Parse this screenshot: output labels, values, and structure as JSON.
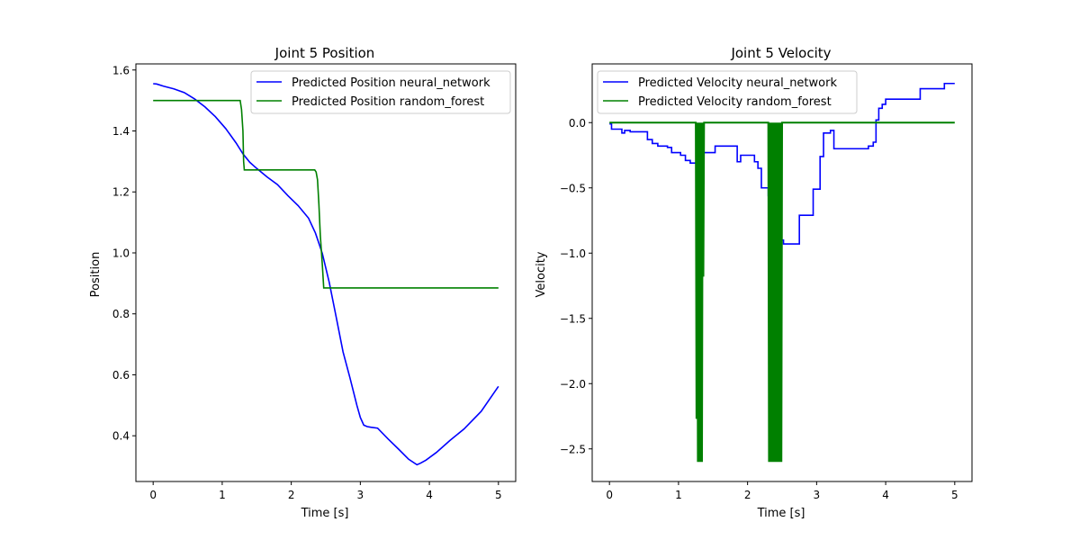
{
  "chart_data": [
    {
      "type": "line",
      "title": "Joint 5 Position",
      "xlabel": "Time [s]",
      "ylabel": "Position",
      "xlim": [
        -0.25,
        5.25
      ],
      "ylim": [
        0.25,
        1.62
      ],
      "xticks": [
        0,
        1,
        2,
        3,
        4,
        5
      ],
      "xtick_labels": [
        "0",
        "1",
        "2",
        "3",
        "4",
        "5"
      ],
      "yticks": [
        0.4,
        0.6,
        0.8,
        1.0,
        1.2,
        1.4,
        1.6
      ],
      "ytick_labels": [
        "0.4",
        "0.6",
        "0.8",
        "1.0",
        "1.2",
        "1.4",
        "1.6"
      ],
      "grid": false,
      "legend_position": "top-right",
      "series": [
        {
          "name": "Predicted Position neural_network",
          "color": "#0000ff",
          "x": [
            0,
            0.05,
            0.15,
            0.3,
            0.45,
            0.6,
            0.75,
            0.9,
            1.05,
            1.2,
            1.3,
            1.4,
            1.5,
            1.65,
            1.8,
            1.95,
            2.1,
            2.25,
            2.35,
            2.45,
            2.55,
            2.65,
            2.75,
            2.85,
            2.95,
            3.0,
            3.05,
            3.1,
            3.15,
            3.25,
            3.4,
            3.55,
            3.7,
            3.82,
            3.87,
            3.95,
            4.1,
            4.3,
            4.5,
            4.75,
            5.0
          ],
          "y": [
            1.555,
            1.554,
            1.547,
            1.538,
            1.526,
            1.505,
            1.479,
            1.447,
            1.408,
            1.361,
            1.325,
            1.297,
            1.277,
            1.249,
            1.224,
            1.188,
            1.155,
            1.114,
            1.065,
            0.998,
            0.903,
            0.79,
            0.675,
            0.59,
            0.5,
            0.46,
            0.435,
            0.43,
            0.428,
            0.425,
            0.39,
            0.357,
            0.323,
            0.305,
            0.31,
            0.32,
            0.345,
            0.385,
            0.422,
            0.48,
            0.562
          ]
        },
        {
          "name": "Predicted Position random_forest",
          "color": "#008000",
          "x": [
            0,
            0.3,
            0.6,
            0.9,
            1.2,
            1.26,
            1.28,
            1.3,
            1.31,
            1.32,
            1.4,
            1.6,
            1.8,
            2.0,
            2.2,
            2.34,
            2.36,
            2.38,
            2.4,
            2.42,
            2.45,
            2.47,
            2.5,
            3.0,
            3.5,
            4.0,
            4.5,
            5.0
          ],
          "y": [
            1.5,
            1.5,
            1.5,
            1.5,
            1.5,
            1.5,
            1.47,
            1.4,
            1.3,
            1.272,
            1.272,
            1.272,
            1.272,
            1.272,
            1.272,
            1.272,
            1.265,
            1.24,
            1.16,
            1.06,
            0.96,
            0.885,
            0.885,
            0.885,
            0.885,
            0.885,
            0.885,
            0.885
          ]
        }
      ]
    },
    {
      "type": "line",
      "title": "Joint 5 Velocity",
      "xlabel": "Time [s]",
      "ylabel": "Velocity",
      "xlim": [
        -0.25,
        5.25
      ],
      "ylim": [
        -2.75,
        0.45
      ],
      "xticks": [
        0,
        1,
        2,
        3,
        4,
        5
      ],
      "xtick_labels": [
        "0",
        "1",
        "2",
        "3",
        "4",
        "5"
      ],
      "yticks": [
        0.0,
        -0.5,
        -1.0,
        -1.5,
        -2.0,
        -2.5
      ],
      "ytick_labels": [
        "0.0",
        "−0.5",
        "−1.0",
        "−1.5",
        "−2.0",
        "−2.5"
      ],
      "grid": false,
      "legend_position": "top-left",
      "series": [
        {
          "name": "Predicted Velocity neural_network",
          "color": "#0000ff",
          "step": true,
          "x": [
            0,
            0.03,
            0.1,
            0.18,
            0.22,
            0.26,
            0.3,
            0.4,
            0.55,
            0.62,
            0.7,
            0.8,
            0.84,
            0.9,
            0.95,
            1.03,
            1.1,
            1.17,
            1.28,
            1.35,
            1.45,
            1.53,
            1.6,
            1.75,
            1.85,
            1.9,
            1.95,
            2.05,
            2.1,
            2.15,
            2.2,
            2.3,
            2.35,
            2.4,
            2.46,
            2.52,
            2.6,
            2.75,
            2.82,
            2.9,
            2.95,
            3.0,
            3.05,
            3.1,
            3.15,
            3.2,
            3.25,
            3.32,
            3.5,
            3.65,
            3.75,
            3.82,
            3.86,
            3.9,
            3.95,
            4.0,
            4.15,
            4.3,
            4.5,
            4.6,
            4.7,
            4.78,
            4.85,
            5.0
          ],
          "y": [
            -0.01,
            -0.05,
            -0.05,
            -0.08,
            -0.06,
            -0.06,
            -0.07,
            -0.07,
            -0.13,
            -0.16,
            -0.18,
            -0.18,
            -0.19,
            -0.23,
            -0.23,
            -0.25,
            -0.29,
            -0.31,
            -0.32,
            -0.23,
            -0.23,
            -0.18,
            -0.18,
            -0.18,
            -0.3,
            -0.25,
            -0.25,
            -0.25,
            -0.3,
            -0.35,
            -0.5,
            -0.56,
            -0.64,
            -0.73,
            -0.9,
            -0.93,
            -0.93,
            -0.71,
            -0.71,
            -0.71,
            -0.51,
            -0.51,
            -0.26,
            -0.08,
            -0.08,
            -0.06,
            -0.2,
            -0.2,
            -0.2,
            -0.2,
            -0.18,
            -0.15,
            0.02,
            0.11,
            0.14,
            0.18,
            0.18,
            0.18,
            0.26,
            0.26,
            0.26,
            0.26,
            0.3,
            0.3
          ]
        },
        {
          "name": "Predicted Velocity random_forest",
          "color": "#008000",
          "step": false,
          "x": [
            0,
            1.25,
            1.26,
            1.27,
            1.28,
            1.29,
            1.3,
            1.31,
            1.32,
            1.33,
            1.34,
            1.35,
            1.36,
            1.37,
            1.38,
            2.3,
            2.31,
            2.32,
            2.33,
            2.34,
            2.35,
            2.36,
            2.37,
            2.38,
            2.39,
            2.4,
            2.41,
            2.42,
            2.43,
            2.44,
            2.45,
            2.46,
            2.47,
            2.48,
            2.49,
            2.5,
            5.0
          ],
          "y": [
            0,
            0,
            -2.27,
            0,
            -2.6,
            0,
            -2.6,
            0,
            -2.6,
            0,
            -2.6,
            0,
            -1.18,
            0,
            0,
            0,
            -2.6,
            0,
            -2.6,
            0,
            -2.6,
            0,
            -2.6,
            0,
            -2.6,
            0,
            -2.6,
            0,
            -2.6,
            0,
            -2.6,
            0,
            -2.6,
            0,
            -2.6,
            0,
            0
          ]
        }
      ]
    }
  ]
}
